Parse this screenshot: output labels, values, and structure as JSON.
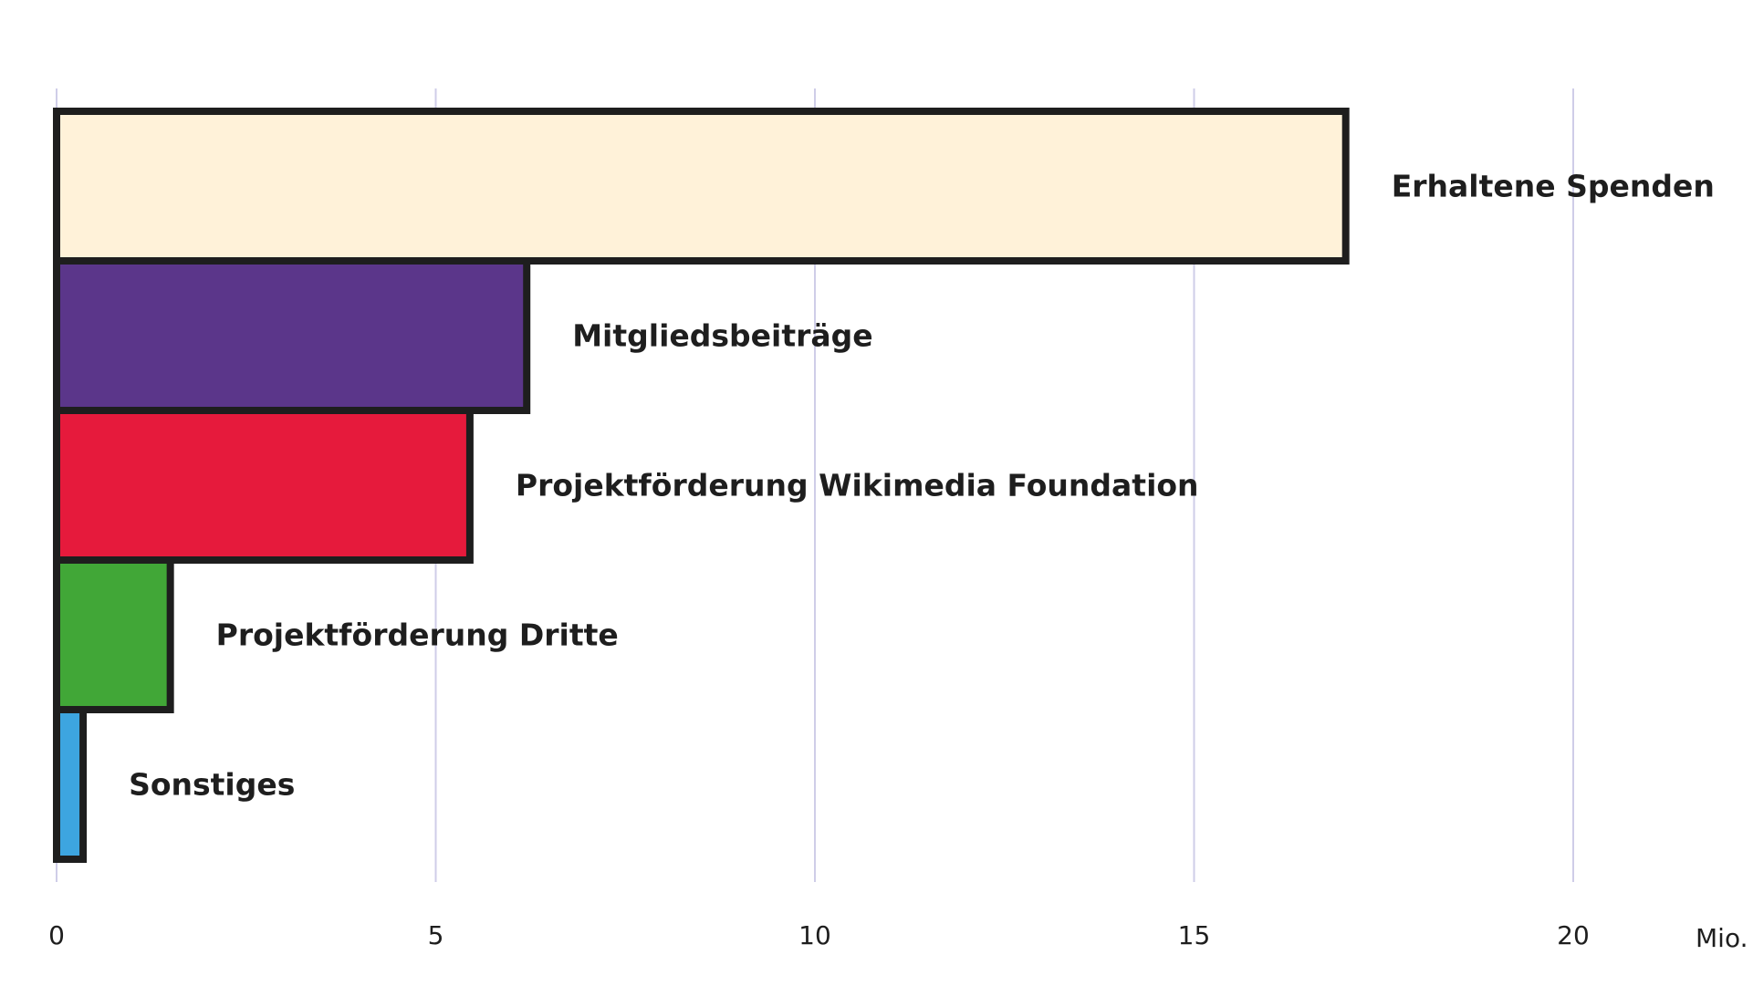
{
  "chart_data": {
    "type": "bar",
    "orientation": "horizontal",
    "title": "",
    "xlabel": "",
    "ylabel": "",
    "unit": "Mio.",
    "xlim": [
      0,
      20
    ],
    "xticks": [
      "0",
      "5",
      "10",
      "15",
      "20"
    ],
    "grid": true,
    "legend": "none",
    "categories": [
      "Erhaltene Spenden",
      "Mitgliedsbeiträge",
      "Projektförderung Wikimedia Foundation",
      "Projektförderung Dritte",
      "Sonstiges"
    ],
    "values": [
      17.0,
      6.2,
      5.45,
      1.5,
      0.35
    ],
    "colors": [
      "#fff2d9",
      "#5b368a",
      "#e61a3c",
      "#41a737",
      "#3da5e0"
    ],
    "outline_color": "#1e1e1e",
    "grid_color": "#cfcde8"
  }
}
